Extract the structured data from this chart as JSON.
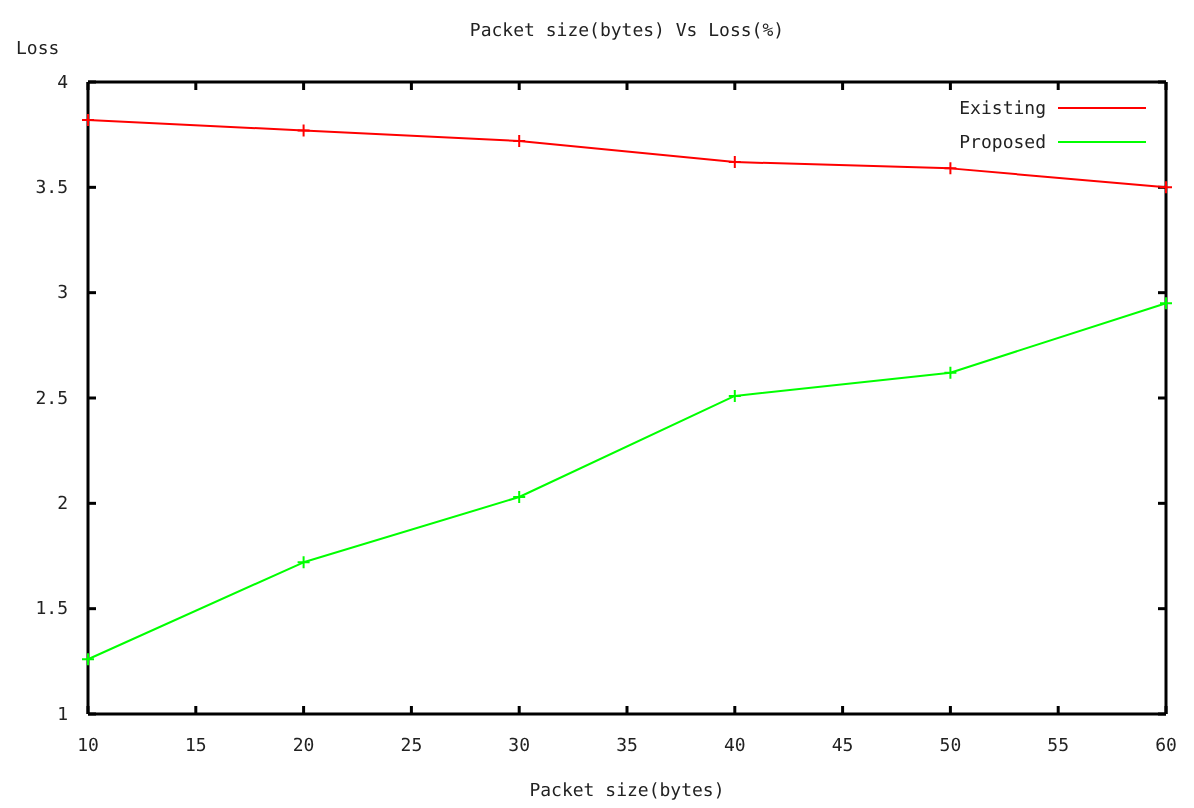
{
  "chart_data": {
    "type": "line",
    "title": "Packet size(bytes) Vs Loss(%)",
    "xlabel": "Packet size(bytes)",
    "ylabel": "Loss",
    "x": [
      10,
      20,
      30,
      40,
      50,
      60
    ],
    "series": [
      {
        "name": "Existing",
        "color": "#ff0000",
        "values": [
          3.82,
          3.77,
          3.72,
          3.62,
          3.59,
          3.5
        ]
      },
      {
        "name": "Proposed",
        "color": "#00ff00",
        "values": [
          1.26,
          1.72,
          2.03,
          2.51,
          2.62,
          2.95
        ]
      }
    ],
    "xlim": [
      10,
      60
    ],
    "xticks": [
      10,
      15,
      20,
      25,
      30,
      35,
      40,
      45,
      50,
      55,
      60
    ],
    "ylim": [
      1,
      4
    ],
    "yticks": [
      1,
      1.5,
      2,
      2.5,
      3,
      3.5,
      4
    ],
    "grid": false,
    "legend": "top right",
    "marker": "cross",
    "line_style": "solid"
  }
}
